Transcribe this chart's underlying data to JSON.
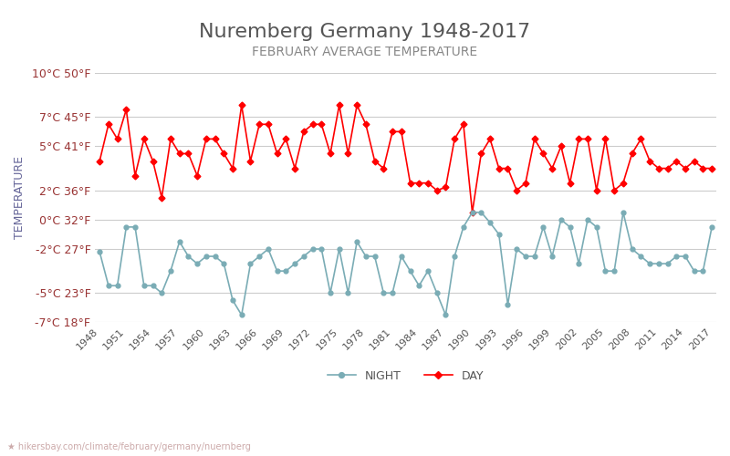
{
  "title": "Nuremberg Germany 1948-2017",
  "subtitle": "FEBRUARY AVERAGE TEMPERATURE",
  "xlabel": "",
  "ylabel": "TEMPERATURE",
  "watermark": "hikersbay.com/climate/february/germany/nuernberg",
  "legend_night": "NIGHT",
  "legend_day": "DAY",
  "years": [
    1948,
    1949,
    1950,
    1951,
    1952,
    1953,
    1954,
    1955,
    1956,
    1957,
    1958,
    1959,
    1960,
    1961,
    1962,
    1963,
    1964,
    1965,
    1966,
    1967,
    1968,
    1969,
    1970,
    1971,
    1972,
    1973,
    1974,
    1975,
    1976,
    1977,
    1978,
    1979,
    1980,
    1981,
    1982,
    1983,
    1984,
    1985,
    1986,
    1987,
    1988,
    1989,
    1990,
    1991,
    1992,
    1993,
    1994,
    1995,
    1996,
    1997,
    1998,
    1999,
    2000,
    2001,
    2002,
    2003,
    2004,
    2005,
    2006,
    2007,
    2008,
    2009,
    2010,
    2011,
    2012,
    2013,
    2014,
    2015,
    2016,
    2017
  ],
  "day": [
    4.0,
    6.5,
    5.5,
    7.5,
    3.0,
    5.5,
    4.0,
    1.5,
    5.5,
    4.5,
    4.5,
    3.0,
    5.5,
    5.5,
    4.5,
    3.5,
    7.8,
    4.0,
    6.5,
    6.5,
    4.5,
    5.5,
    3.5,
    6.0,
    6.5,
    6.5,
    4.5,
    7.8,
    4.5,
    7.8,
    6.5,
    4.0,
    3.5,
    6.0,
    6.0,
    2.5,
    2.5,
    2.5,
    2.0,
    2.2,
    5.5,
    6.5,
    0.5,
    4.5,
    5.5,
    3.5,
    3.5,
    2.0,
    2.5,
    5.5,
    4.5,
    3.5,
    5.0,
    2.5,
    5.5,
    5.5,
    2.0,
    5.5,
    2.0,
    2.5,
    4.5,
    5.5,
    4.0,
    3.5,
    3.5,
    4.0,
    3.5,
    4.0,
    3.5,
    3.5
  ],
  "night": [
    -2.2,
    -4.5,
    -4.5,
    -0.5,
    -0.5,
    -4.5,
    -4.5,
    -5.0,
    -3.5,
    -1.5,
    -2.5,
    -3.0,
    -2.5,
    -2.5,
    -3.0,
    -5.5,
    -6.5,
    -3.0,
    -2.5,
    -2.0,
    -3.5,
    -3.5,
    -3.0,
    -2.5,
    -2.0,
    -2.0,
    -5.0,
    -2.0,
    -5.0,
    -1.5,
    -2.5,
    -2.5,
    -5.0,
    -5.0,
    -2.5,
    -3.5,
    -4.5,
    -3.5,
    -5.0,
    -6.5,
    -2.5,
    -0.5,
    0.5,
    0.5,
    -0.2,
    -1.0,
    -5.8,
    -2.0,
    -2.5,
    -2.5,
    -0.5,
    -2.5,
    0.0,
    -0.5,
    -3.0,
    0.0,
    -0.5,
    -3.5,
    -3.5,
    0.5,
    -2.0,
    -2.5,
    -3.0,
    -3.0,
    -3.0,
    -2.5,
    -2.5,
    -3.5,
    -3.5,
    -0.5
  ],
  "ylim_min": -7,
  "ylim_max": 10,
  "yticks_c": [
    -7,
    -5,
    -2,
    0,
    2,
    5,
    7,
    10
  ],
  "yticks_f": [
    18,
    23,
    27,
    32,
    36,
    41,
    45,
    50
  ],
  "grid_color": "#cccccc",
  "day_color": "#ff0000",
  "night_color": "#7aacb5",
  "title_color": "#555555",
  "subtitle_color": "#888888",
  "ylabel_color": "#666699",
  "ytick_color": "#993333",
  "xtick_color": "#555555",
  "bg_color": "#ffffff",
  "watermark_color": "#ccaaaa",
  "title_fontsize": 16,
  "subtitle_fontsize": 10,
  "ylabel_fontsize": 9,
  "ytick_fontsize": 9,
  "xtick_fontsize": 8,
  "legend_fontsize": 9
}
